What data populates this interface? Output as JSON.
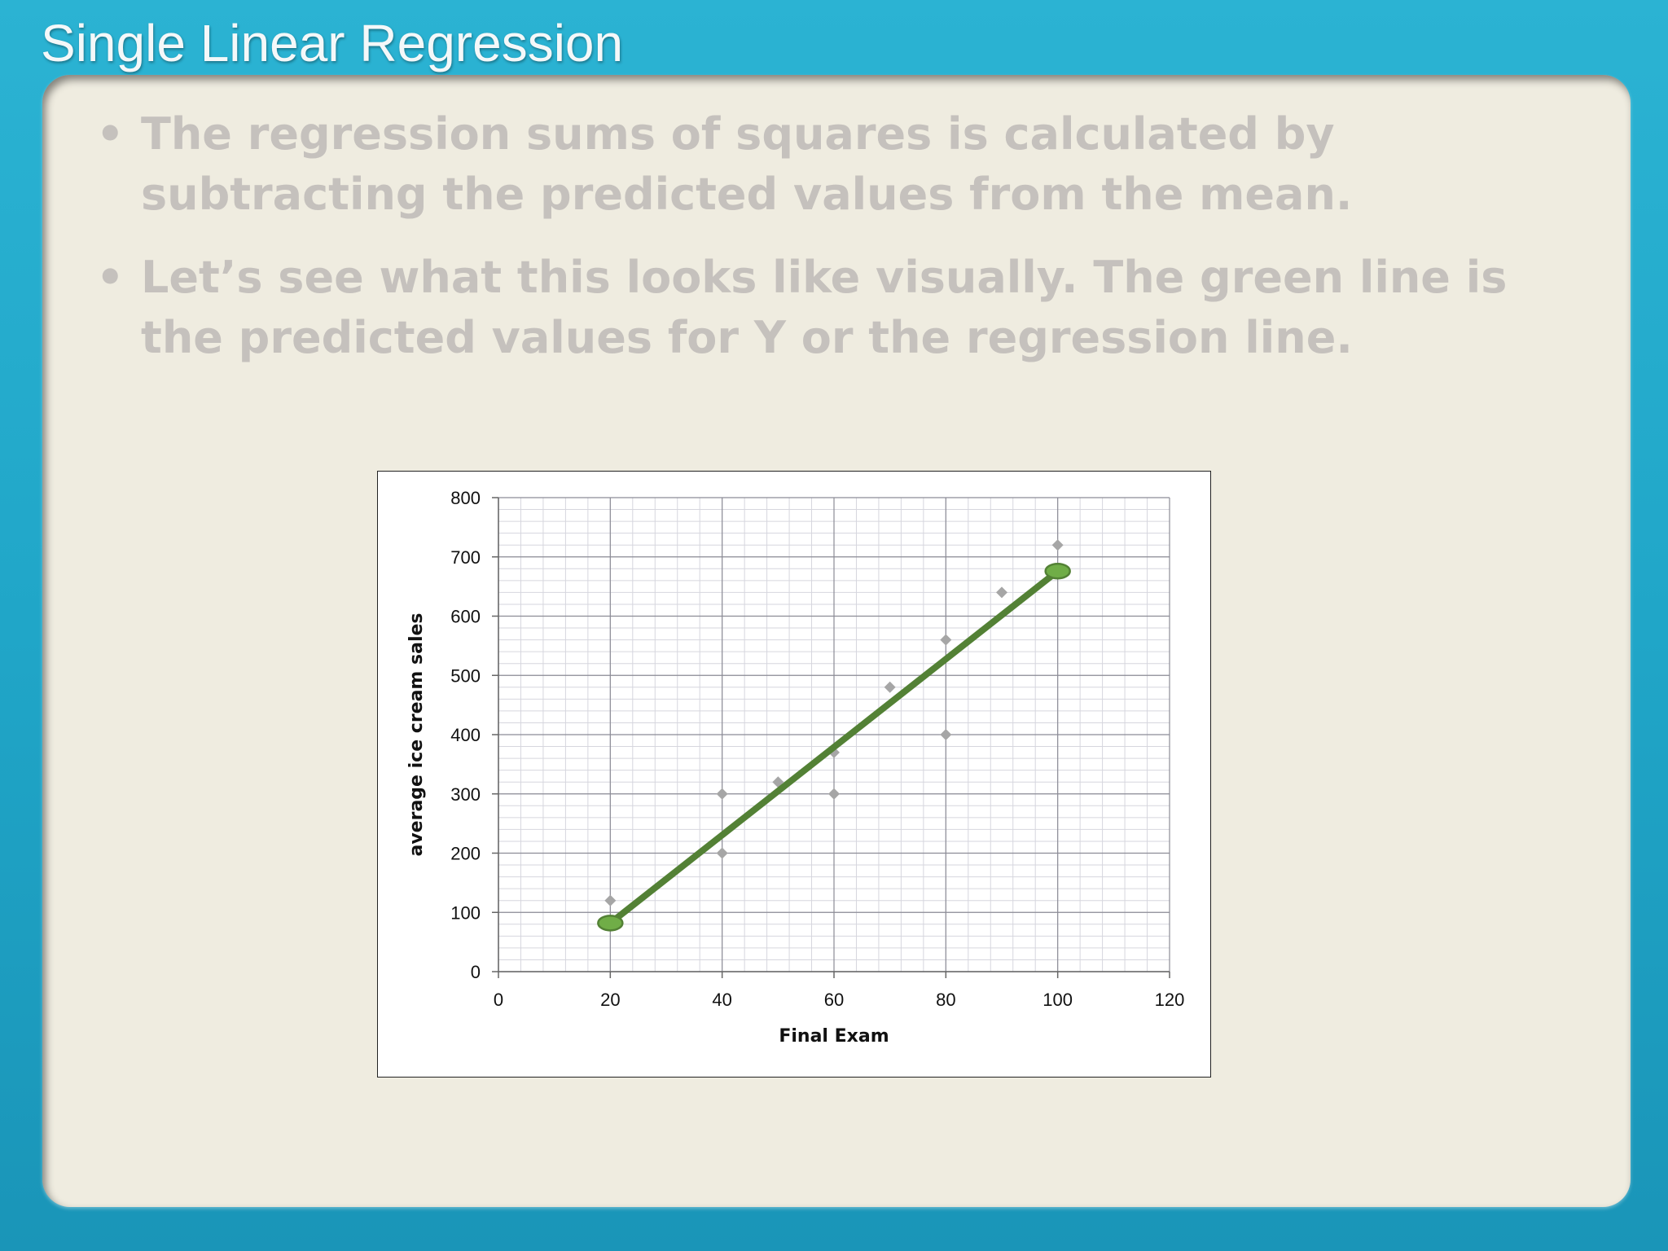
{
  "slide": {
    "title": "Single Linear Regression",
    "bullets": [
      "The regression sums of squares is calculated by subtracting the predicted values from the mean.",
      "Let’s see what this looks like visually.  The green line is the predicted values for Y or the regression line."
    ]
  },
  "colors": {
    "frame": "#1c9bbd",
    "panel": "#efece0",
    "bullet_text": "#c5c1bd",
    "points": "#a6a6a6",
    "regression_line": "#538135",
    "endpoint_fill": "#70ad47"
  },
  "chart_data": {
    "type": "scatter",
    "xlabel": "Final Exam",
    "ylabel": "average ice cream sales",
    "xlim": [
      0,
      120
    ],
    "ylim": [
      0,
      800
    ],
    "x_ticks": [
      "0",
      "20",
      "40",
      "60",
      "80",
      "100",
      "120"
    ],
    "y_ticks": [
      "0",
      "100",
      "200",
      "300",
      "400",
      "500",
      "600",
      "700",
      "800"
    ],
    "grid": "major and minor",
    "points": [
      {
        "x": 20,
        "y": 120
      },
      {
        "x": 40,
        "y": 300
      },
      {
        "x": 40,
        "y": 200
      },
      {
        "x": 50,
        "y": 320
      },
      {
        "x": 60,
        "y": 370
      },
      {
        "x": 60,
        "y": 300
      },
      {
        "x": 70,
        "y": 480
      },
      {
        "x": 80,
        "y": 560
      },
      {
        "x": 80,
        "y": 400
      },
      {
        "x": 90,
        "y": 640
      },
      {
        "x": 100,
        "y": 720
      }
    ],
    "regression_line": {
      "x": [
        20,
        100
      ],
      "y": [
        82,
        676
      ]
    }
  }
}
